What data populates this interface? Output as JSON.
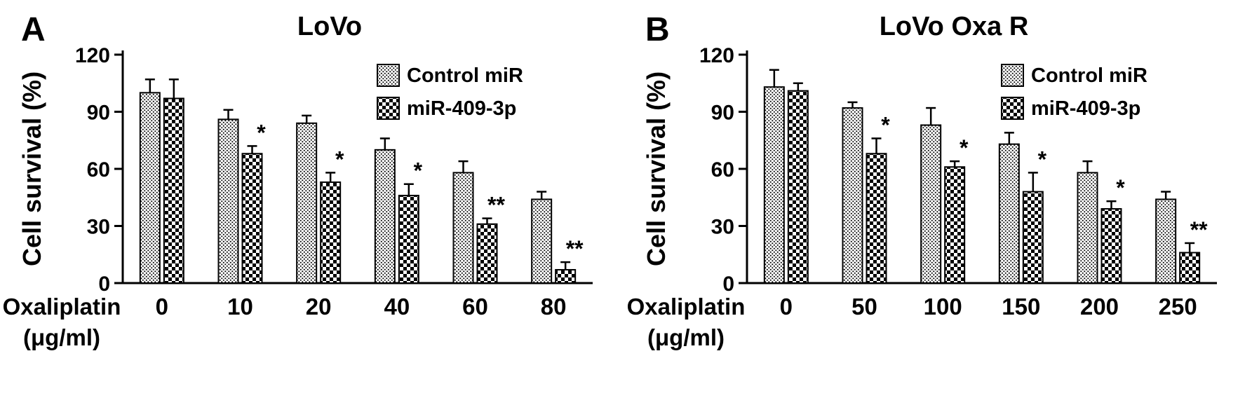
{
  "colors": {
    "foreground": "#000000",
    "background": "#ffffff"
  },
  "chart_data": [
    {
      "type": "bar",
      "panel_label": "A",
      "title": "LoVo",
      "ylabel": "Cell survival (%)",
      "xlabel": "Oxaliplatin (μg/ml)",
      "xlabel_line1": "Oxaliplatin",
      "xlabel_line2": "(μg/ml)",
      "ylim": [
        0,
        120
      ],
      "yticks": [
        0,
        30,
        60,
        90,
        120
      ],
      "categories": [
        "0",
        "10",
        "20",
        "40",
        "60",
        "80"
      ],
      "legend_position": "top-right",
      "grid": false,
      "series": [
        {
          "name": "Control miR",
          "pattern": "stipple",
          "values": [
            100,
            86,
            84,
            70,
            58,
            44
          ],
          "errors": [
            7,
            5,
            4,
            6,
            6,
            4
          ]
        },
        {
          "name": "miR-409-3p",
          "pattern": "checker",
          "values": [
            97,
            68,
            53,
            46,
            31,
            7
          ],
          "errors": [
            10,
            4,
            5,
            6,
            3,
            4
          ]
        }
      ],
      "significance": [
        "",
        "*",
        "*",
        "*",
        "**",
        "**"
      ]
    },
    {
      "type": "bar",
      "panel_label": "B",
      "title": "LoVo Oxa R",
      "ylabel": "Cell survival (%)",
      "xlabel": "Oxaliplatin (μg/ml)",
      "xlabel_line1": "Oxaliplatin",
      "xlabel_line2": "(μg/ml)",
      "ylim": [
        0,
        120
      ],
      "yticks": [
        0,
        30,
        60,
        90,
        120
      ],
      "categories": [
        "0",
        "50",
        "100",
        "150",
        "200",
        "250"
      ],
      "legend_position": "top-right",
      "grid": false,
      "series": [
        {
          "name": "Control miR",
          "pattern": "stipple",
          "values": [
            103,
            92,
            83,
            73,
            58,
            44
          ],
          "errors": [
            9,
            3,
            9,
            6,
            6,
            4
          ]
        },
        {
          "name": "miR-409-3p",
          "pattern": "checker",
          "values": [
            101,
            68,
            61,
            48,
            39,
            16
          ],
          "errors": [
            4,
            8,
            3,
            10,
            4,
            5
          ]
        }
      ],
      "significance": [
        "",
        "*",
        "*",
        "*",
        "*",
        "**"
      ]
    }
  ]
}
